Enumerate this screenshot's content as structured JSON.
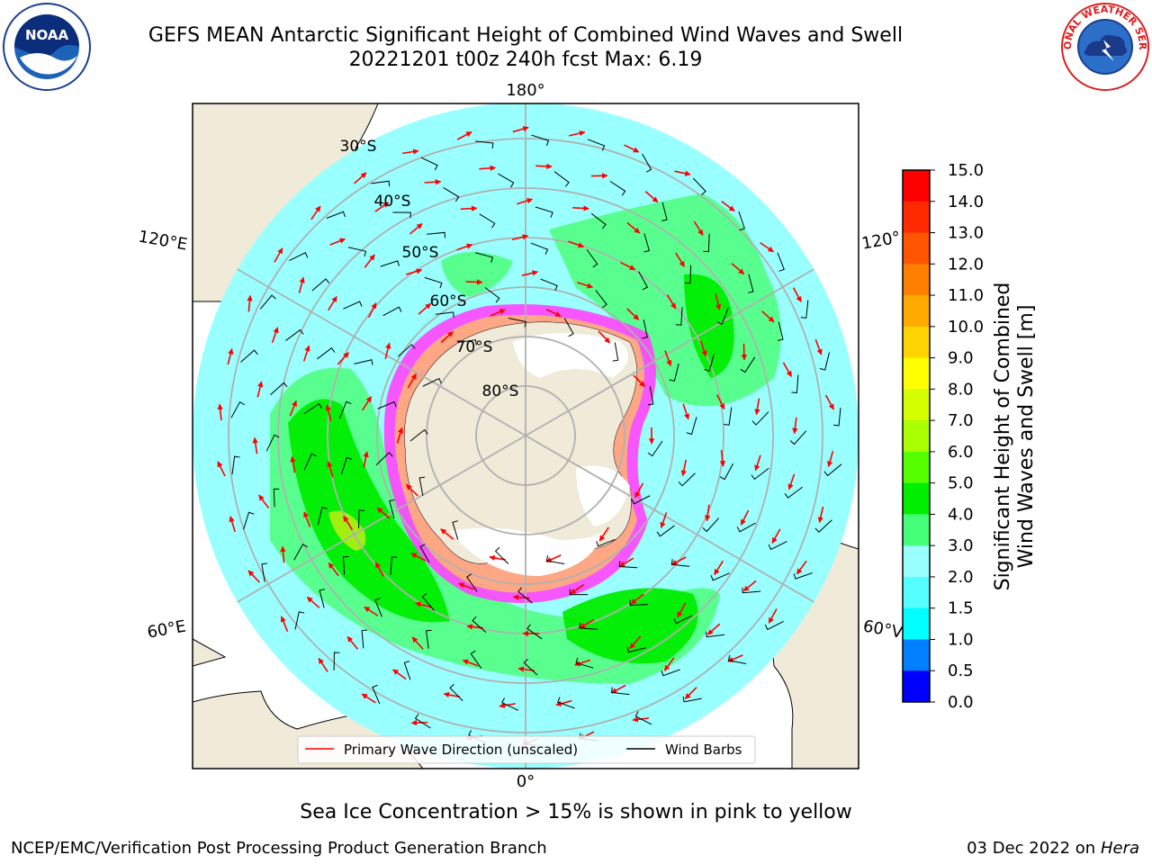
{
  "title": {
    "line1": "GEFS MEAN Antarctic Significant Height of Combined Wind Waves and Swell",
    "line2": "20221201 t00z 240h fcst   Max: 6.19"
  },
  "map": {
    "projection": "south-polar-stereographic",
    "longitude_labels": [
      "180°",
      "120°E",
      "120°",
      "60°E",
      "60°V",
      "0°"
    ],
    "latitude_labels": [
      "30°S",
      "40°S",
      "50°S",
      "60°S",
      "70°S",
      "80°S"
    ],
    "colors": {
      "land": "#efebd8",
      "open_ocean_low": "#99ffff",
      "wave_2_3m": "#55ff88",
      "wave_4_5m": "#00ee00",
      "wave_6m": "#aaee11",
      "sea_ice": "#ff44ff",
      "sea_ice_inner": "#ffbb66",
      "ice_shelf": "#ffffff",
      "wave_direction_arrow": "#ff0000",
      "wind_barb": "#000000",
      "graticule": "#b0b0b0"
    },
    "legend": {
      "primary_wave_direction": "Primary Wave Direction (unscaled)",
      "wind_barbs": "Wind Barbs"
    }
  },
  "colorbar": {
    "title_line1": "Significant Height of Combined",
    "title_line2": "Wind Waves and Swell [m]",
    "tick_labels": [
      "15.0",
      "14.0",
      "13.0",
      "12.0",
      "11.0",
      "10.0",
      "9.0",
      "8.0",
      "7.0",
      "6.0",
      "5.0",
      "4.0",
      "3.0",
      "2.0",
      "1.5",
      "1.0",
      "0.5",
      "0.0"
    ],
    "colors_top_to_bottom": [
      "#ff0000",
      "#ff2a00",
      "#ff5500",
      "#ff7f00",
      "#ffaa00",
      "#ffd400",
      "#ffff00",
      "#d4ff00",
      "#aaff00",
      "#55ff00",
      "#00ee00",
      "#44ff77",
      "#99ffff",
      "#55ffff",
      "#00ffff",
      "#0080ff",
      "#0000ff"
    ]
  },
  "note": "Sea Ice Concentration > 15% is shown in pink to yellow",
  "footer": {
    "left": "NCEP/EMC/Verification Post Processing Product Generation Branch",
    "date": "03 Dec 2022 on",
    "host": "Hera"
  },
  "logos": {
    "noaa": "NOAA",
    "nws": "NATIONAL WEATHER SERVICE"
  }
}
